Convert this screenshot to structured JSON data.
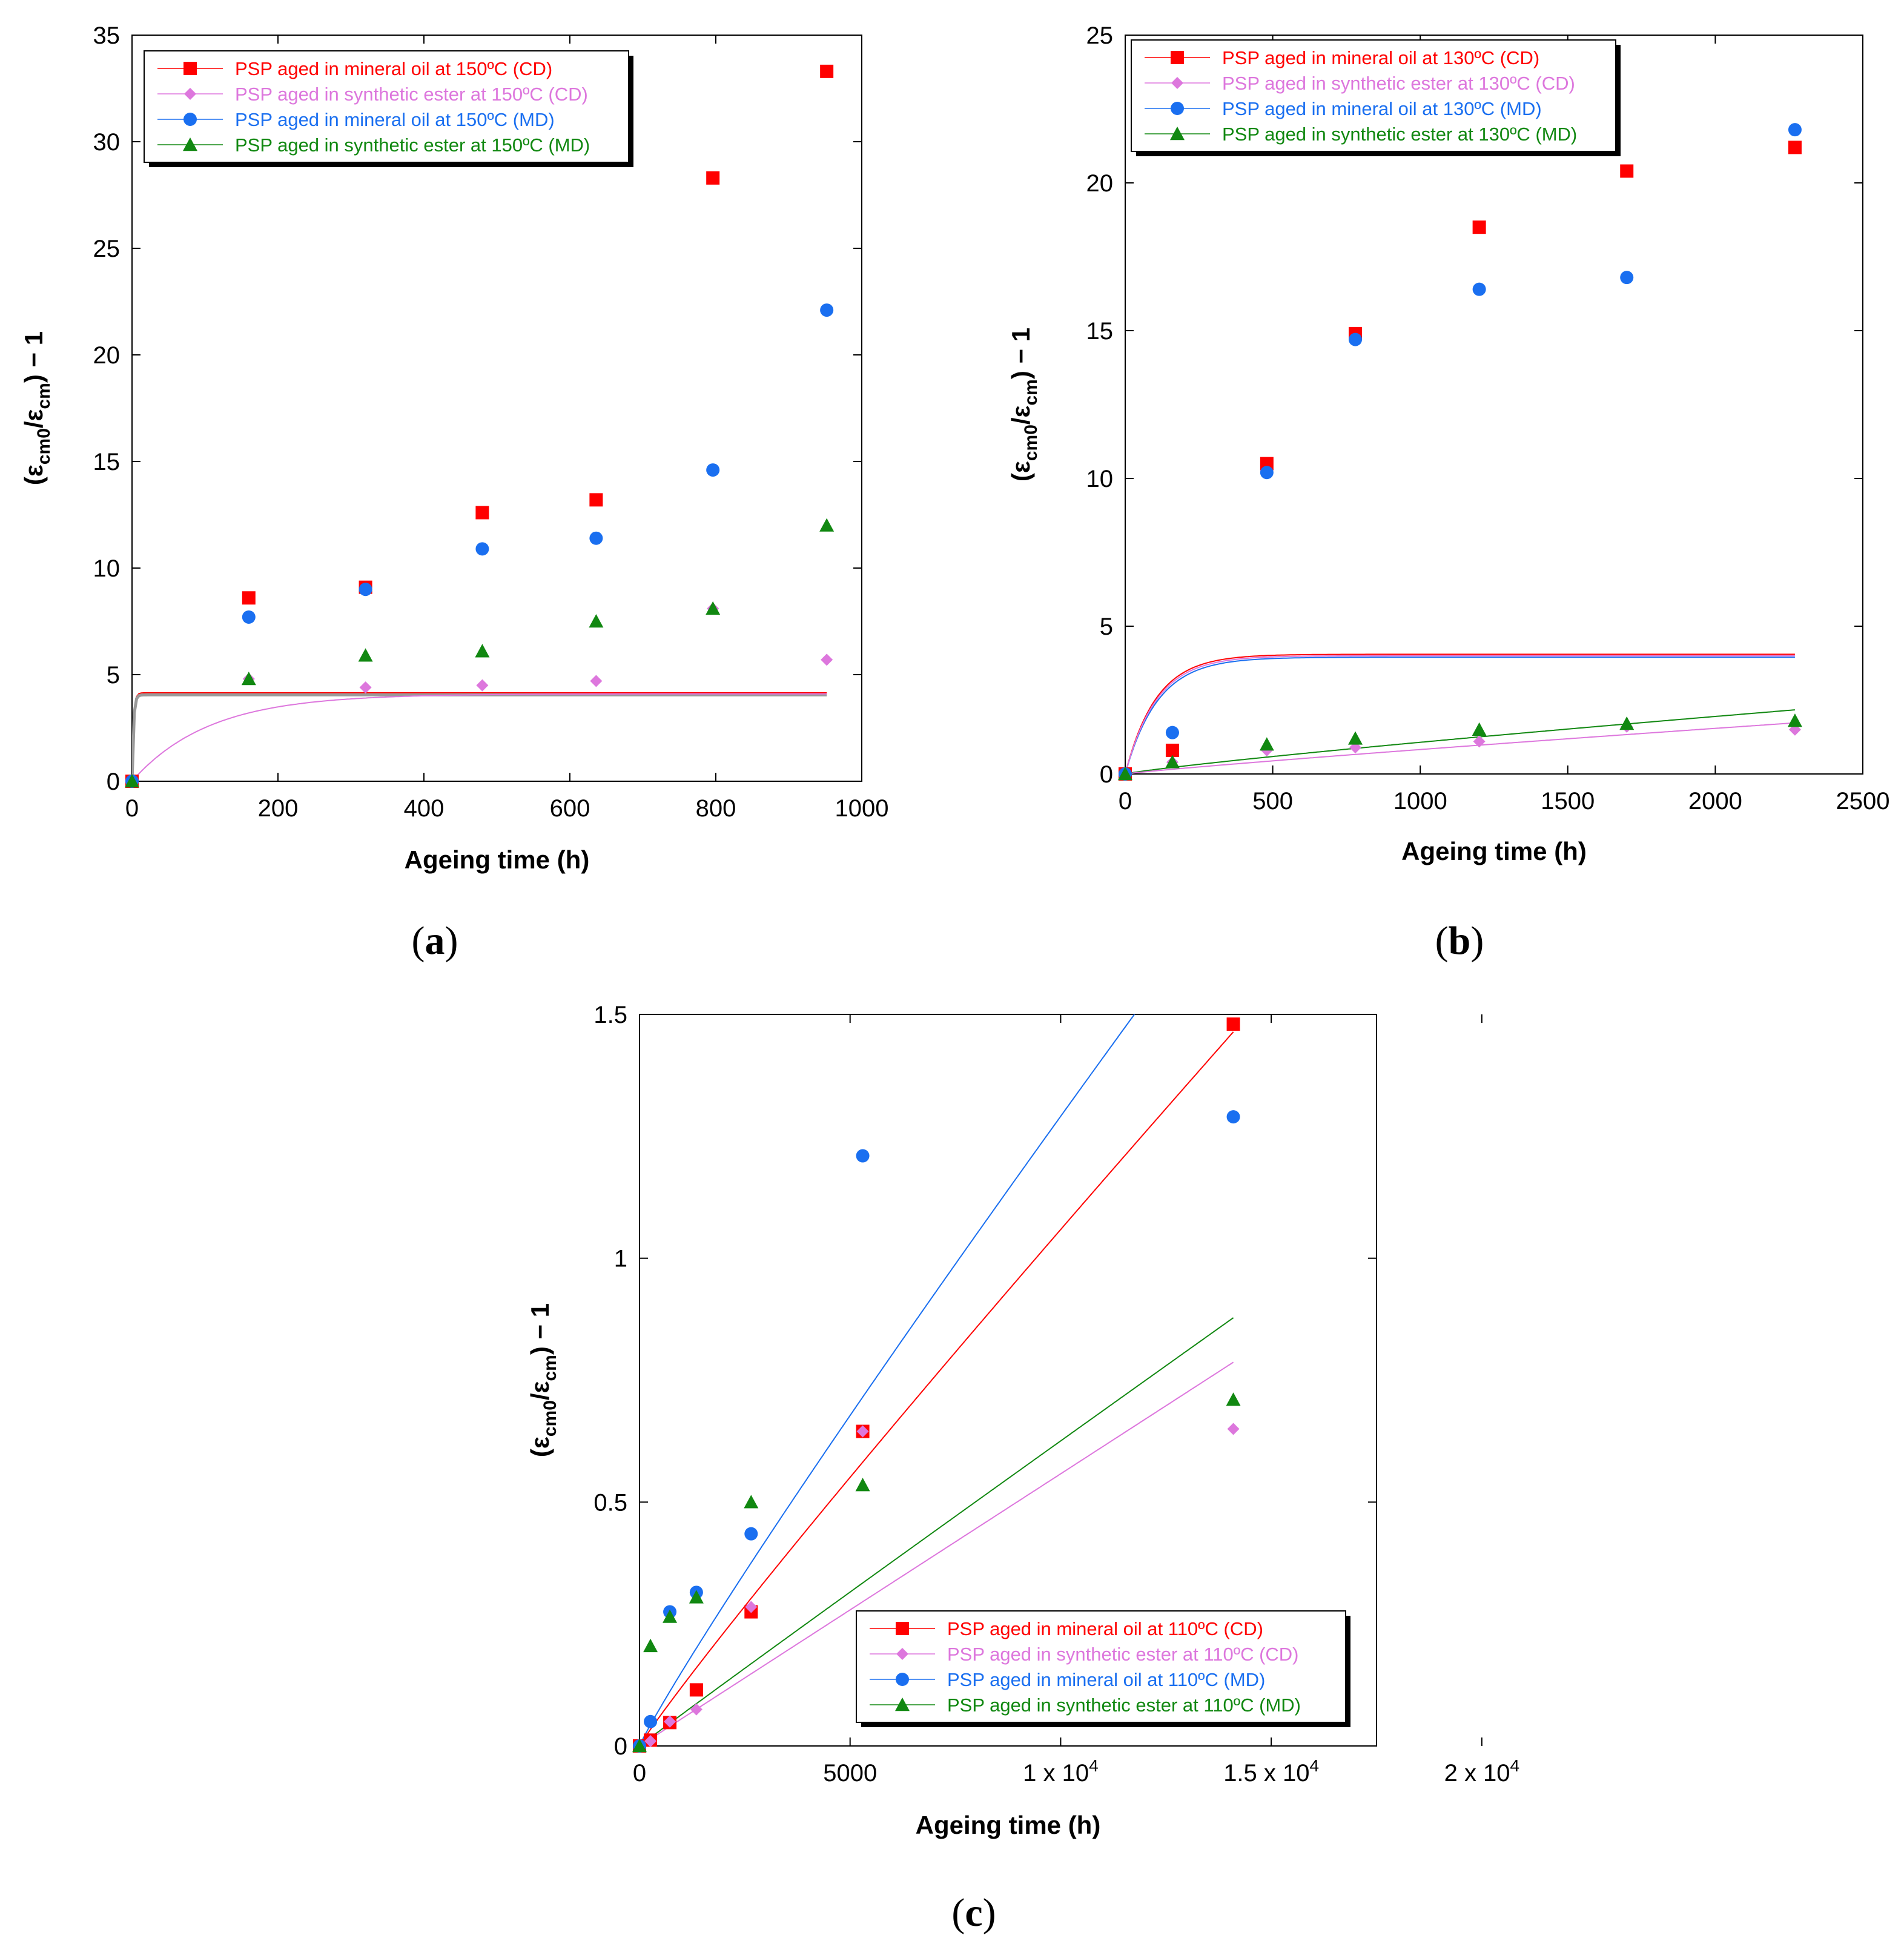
{
  "colors": {
    "red": "#ff0000",
    "pink": "#dd77dd",
    "blue": "#1a6ff0",
    "green": "#118811",
    "grey": "#9a9a9a"
  },
  "chart_data": [
    {
      "panel": "a",
      "type": "scatter",
      "panel_label": "a",
      "xlabel": "Ageing time (h)",
      "ylabel": "(ε_cm0/ε_cm) − 1",
      "ylabel_parts": {
        "open": "(ε",
        "sub1": "cm0",
        "mid": "/ε",
        "sub2": "cm",
        "close": ") − 1"
      },
      "xlim": [
        0,
        1000
      ],
      "ylim": [
        0,
        35
      ],
      "xticks": [
        0,
        200,
        400,
        600,
        800,
        1000
      ],
      "yticks": [
        0,
        5,
        10,
        15,
        20,
        25,
        30,
        35
      ],
      "xtick_labels": [
        "0",
        "200",
        "400",
        "600",
        "800",
        "1000"
      ],
      "ytick_labels": [
        "0",
        "5",
        "10",
        "15",
        "20",
        "25",
        "30",
        "35"
      ],
      "legend_position": "top-left",
      "series": [
        {
          "name": "PSP aged in mineral oil at 150ºC (CD)",
          "color": "red",
          "marker": "square",
          "x": [
            0,
            160,
            320,
            480,
            636,
            796,
            952
          ],
          "y": [
            0,
            8.6,
            9.1,
            12.6,
            13.2,
            28.3,
            33.3
          ]
        },
        {
          "name": "PSP aged in synthetic ester at 150ºC (CD)",
          "color": "pink",
          "marker": "diamond",
          "x": [
            0,
            160,
            320,
            480,
            636,
            796,
            952
          ],
          "y": [
            0,
            4.8,
            4.4,
            4.5,
            4.7,
            8.1,
            5.7
          ]
        },
        {
          "name": "PSP aged in mineral oil at 150ºC (MD)",
          "color": "blue",
          "marker": "circle",
          "x": [
            0,
            160,
            320,
            480,
            636,
            796,
            952
          ],
          "y": [
            0,
            7.7,
            9.0,
            10.9,
            11.4,
            14.6,
            22.1
          ]
        },
        {
          "name": "PSP aged in synthetic ester at 150ºC (MD)",
          "color": "green",
          "marker": "triangle",
          "x": [
            0,
            160,
            320,
            480,
            636,
            796,
            952
          ],
          "y": [
            0,
            4.8,
            5.9,
            6.1,
            7.5,
            8.1,
            12.0
          ]
        }
      ],
      "fits": [
        {
          "color": "red",
          "model": "exp",
          "a": 4.15,
          "k": 0.5,
          "xmax": 952
        },
        {
          "color": "grey",
          "model": "exp",
          "a": 4.05,
          "k": 0.5,
          "xmax": 952
        },
        {
          "color": "pink",
          "model": "exp",
          "a": 4.1,
          "k": 0.0095,
          "xmax": 952
        }
      ]
    },
    {
      "panel": "b",
      "type": "scatter",
      "panel_label": "b",
      "xlabel": "Ageing time (h)",
      "ylabel": "(ε_cm0/ε_cm) − 1",
      "ylabel_parts": {
        "open": "(ε",
        "sub1": "cm0",
        "mid": "/ε",
        "sub2": "cm",
        "close": ") − 1"
      },
      "xlim": [
        0,
        2500
      ],
      "ylim": [
        0,
        25
      ],
      "xticks": [
        0,
        500,
        1000,
        1500,
        2000,
        2500
      ],
      "yticks": [
        0,
        5,
        10,
        15,
        20,
        25
      ],
      "xtick_labels": [
        "0",
        "500",
        "1000",
        "1500",
        "2000",
        "2500"
      ],
      "ytick_labels": [
        "0",
        "5",
        "10",
        "15",
        "20",
        "25"
      ],
      "legend_position": "top-left",
      "series": [
        {
          "name": "PSP aged in mineral oil at 130ºC (CD)",
          "color": "red",
          "marker": "square",
          "x": [
            0,
            160,
            480,
            780,
            1200,
            1700,
            2270
          ],
          "y": [
            0,
            0.8,
            10.5,
            14.9,
            18.5,
            20.4,
            21.2
          ]
        },
        {
          "name": "PSP aged in synthetic ester at 130ºC (CD)",
          "color": "pink",
          "marker": "diamond",
          "x": [
            0,
            160,
            480,
            780,
            1200,
            1700,
            2270
          ],
          "y": [
            0,
            0.4,
            0.8,
            0.9,
            1.1,
            1.6,
            1.5
          ]
        },
        {
          "name": "PSP aged in mineral oil at 130ºC (MD)",
          "color": "blue",
          "marker": "circle",
          "x": [
            0,
            160,
            480,
            780,
            1200,
            1700,
            2270
          ],
          "y": [
            0,
            1.4,
            10.2,
            14.7,
            16.4,
            16.8,
            21.8
          ]
        },
        {
          "name": "PSP aged in synthetic ester at 130ºC (MD)",
          "color": "green",
          "marker": "triangle",
          "x": [
            0,
            160,
            480,
            780,
            1200,
            1700,
            2270
          ],
          "y": [
            0,
            0.4,
            1.0,
            1.2,
            1.5,
            1.7,
            1.8
          ]
        }
      ],
      "fits": [
        {
          "color": "red",
          "model": "exp",
          "a": 4.05,
          "k": 0.0095,
          "xmax": 2270
        },
        {
          "color": "blue",
          "model": "exp",
          "a": 3.95,
          "k": 0.009,
          "xmax": 2270
        },
        {
          "color": "pink",
          "model": "exp",
          "a": 4.0,
          "k": 0.0093,
          "xmax": 2270
        },
        {
          "color": "green",
          "model": "power",
          "c": 0.00282,
          "p": 0.86,
          "xmax": 2270
        },
        {
          "color": "pink",
          "model": "power",
          "c": 0.00165,
          "p": 0.9,
          "xmax": 2270
        }
      ]
    },
    {
      "panel": "c",
      "type": "scatter",
      "panel_label": "c",
      "xlabel": "Ageing time (h)",
      "ylabel": "(ε_cm0/ε_cm) − 1",
      "ylabel_parts": {
        "open": "(ε",
        "sub1": "cm0",
        "mid": "/ε",
        "sub2": "cm",
        "close": ") − 1"
      },
      "xlim": [
        0,
        17500
      ],
      "ylim": [
        0,
        1.5
      ],
      "xticks": [
        0,
        5000,
        10000,
        15000,
        20000
      ],
      "yticks": [
        0,
        0.5,
        1,
        1.5
      ],
      "xtick_labels": [
        "0",
        "5000",
        "1 x 10",
        "1.5 x 10",
        "2 x 10"
      ],
      "xtick_exponents": [
        "",
        "",
        "4",
        "4",
        "4"
      ],
      "ytick_labels": [
        "0",
        "0.5",
        "1",
        "1.5"
      ],
      "legend_position": "bottom-right",
      "series": [
        {
          "name": "PSP aged in mineral oil at 110ºC (CD)",
          "color": "red",
          "marker": "square",
          "x": [
            0,
            260,
            720,
            1350,
            2650,
            5300,
            14100
          ],
          "y": [
            0,
            0.012,
            0.048,
            0.115,
            0.275,
            0.645,
            1.48
          ]
        },
        {
          "name": "PSP aged in synthetic ester at 110ºC (CD)",
          "color": "pink",
          "marker": "diamond",
          "x": [
            0,
            260,
            720,
            1350,
            2650,
            5300,
            14100
          ],
          "y": [
            0,
            0.01,
            0.05,
            0.075,
            0.285,
            0.645,
            0.65
          ]
        },
        {
          "name": "PSP aged in mineral oil at 110ºC (MD)",
          "color": "blue",
          "marker": "circle",
          "x": [
            0,
            260,
            720,
            1350,
            2650,
            5300,
            14100
          ],
          "y": [
            0,
            0.05,
            0.275,
            0.315,
            0.435,
            1.21,
            1.29
          ]
        },
        {
          "name": "PSP aged in synthetic ester at 110ºC (MD)",
          "color": "green",
          "marker": "triangle",
          "x": [
            0,
            260,
            720,
            1350,
            2650,
            5300,
            14100
          ],
          "y": [
            0,
            0.205,
            0.265,
            0.305,
            0.5,
            0.535,
            0.71
          ]
        }
      ],
      "fits": [
        {
          "color": "red",
          "model": "power",
          "c": 0.000179,
          "p": 0.943,
          "xmax": 14100
        },
        {
          "color": "blue",
          "model": "power",
          "c": 0.000246,
          "p": 0.93,
          "xmax": 14100
        },
        {
          "color": "green",
          "model": "power",
          "c": 7.05e-05,
          "p": 0.987,
          "xmax": 14100
        },
        {
          "color": "pink",
          "model": "power",
          "c": 5.58e-05,
          "p": 1.0,
          "xmax": 14100
        }
      ]
    }
  ]
}
